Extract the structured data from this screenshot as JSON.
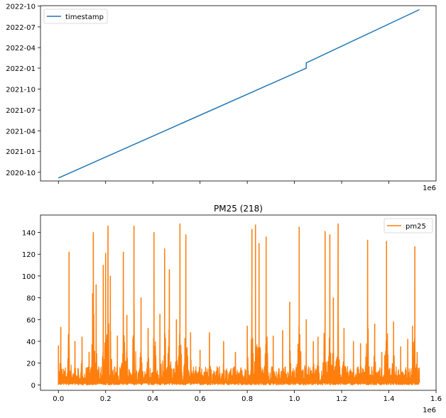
{
  "chart_data": [
    {
      "type": "line",
      "title": "",
      "xlabel": "",
      "ylabel": "",
      "x_offset_label": "1e6",
      "y_ticks": [
        "2020-10",
        "2021-01",
        "2021-04",
        "2021-07",
        "2021-10",
        "2022-01",
        "2022-04",
        "2022-07",
        "2022-10"
      ],
      "x_ticks_unlabeled": [
        0,
        0.2,
        0.4,
        0.6,
        0.8,
        1.0,
        1.2,
        1.4
      ],
      "xlim": [
        -0.076,
        1.6
      ],
      "ylim": [
        "2020-08-24",
        "2022-10-02"
      ],
      "legend": {
        "position": "upper left",
        "entries": [
          "timestamp"
        ]
      },
      "series": [
        {
          "name": "timestamp",
          "color": "#1f77b4",
          "points": [
            {
              "x": 0.0,
              "y": "2020-09-06"
            },
            {
              "x": 1.05,
              "y": "2022-01-01"
            },
            {
              "x": 1.05,
              "y": "2022-01-24"
            },
            {
              "x": 1.53,
              "y": "2022-09-15"
            }
          ]
        }
      ]
    },
    {
      "type": "line",
      "title": "PM25 (218)",
      "xlabel": "",
      "ylabel": "",
      "x_offset_label": "1e6",
      "x_ticks": [
        "0.0",
        "0.2",
        "0.4",
        "0.6",
        "0.8",
        "1.0",
        "1.2",
        "1.4",
        "1.6"
      ],
      "y_ticks": [
        "0",
        "20",
        "40",
        "60",
        "80",
        "100",
        "120",
        "140"
      ],
      "xlim": [
        -0.076,
        1.6
      ],
      "ylim": [
        -5,
        156
      ],
      "legend": {
        "position": "upper right",
        "entries": [
          "pm25"
        ]
      },
      "series": [
        {
          "name": "pm25",
          "color": "#ff7f0e",
          "peaks": [
            {
              "x": 0.0,
              "y": 36
            },
            {
              "x": 0.01,
              "y": 53
            },
            {
              "x": 0.045,
              "y": 122
            },
            {
              "x": 0.07,
              "y": 40
            },
            {
              "x": 0.1,
              "y": 44
            },
            {
              "x": 0.13,
              "y": 30
            },
            {
              "x": 0.145,
              "y": 84
            },
            {
              "x": 0.148,
              "y": 140
            },
            {
              "x": 0.16,
              "y": 92
            },
            {
              "x": 0.19,
              "y": 110
            },
            {
              "x": 0.2,
              "y": 121
            },
            {
              "x": 0.21,
              "y": 146
            },
            {
              "x": 0.22,
              "y": 100
            },
            {
              "x": 0.25,
              "y": 45
            },
            {
              "x": 0.275,
              "y": 122
            },
            {
              "x": 0.29,
              "y": 64
            },
            {
              "x": 0.32,
              "y": 146
            },
            {
              "x": 0.35,
              "y": 80
            },
            {
              "x": 0.38,
              "y": 52
            },
            {
              "x": 0.405,
              "y": 140
            },
            {
              "x": 0.43,
              "y": 65
            },
            {
              "x": 0.45,
              "y": 125
            },
            {
              "x": 0.47,
              "y": 106
            },
            {
              "x": 0.5,
              "y": 60
            },
            {
              "x": 0.515,
              "y": 148
            },
            {
              "x": 0.54,
              "y": 138
            },
            {
              "x": 0.56,
              "y": 48
            },
            {
              "x": 0.6,
              "y": 32
            },
            {
              "x": 0.64,
              "y": 48
            },
            {
              "x": 0.7,
              "y": 40
            },
            {
              "x": 0.75,
              "y": 30
            },
            {
              "x": 0.8,
              "y": 54
            },
            {
              "x": 0.82,
              "y": 143
            },
            {
              "x": 0.835,
              "y": 147
            },
            {
              "x": 0.85,
              "y": 130
            },
            {
              "x": 0.88,
              "y": 136
            },
            {
              "x": 0.91,
              "y": 45
            },
            {
              "x": 0.95,
              "y": 50
            },
            {
              "x": 0.98,
              "y": 76
            },
            {
              "x": 1.02,
              "y": 145
            },
            {
              "x": 1.05,
              "y": 60
            },
            {
              "x": 1.08,
              "y": 40
            },
            {
              "x": 1.1,
              "y": 44
            },
            {
              "x": 1.13,
              "y": 141
            },
            {
              "x": 1.15,
              "y": 138
            },
            {
              "x": 1.165,
              "y": 80
            },
            {
              "x": 1.185,
              "y": 148
            },
            {
              "x": 1.21,
              "y": 52
            },
            {
              "x": 1.25,
              "y": 40
            },
            {
              "x": 1.28,
              "y": 38
            },
            {
              "x": 1.31,
              "y": 133
            },
            {
              "x": 1.34,
              "y": 56
            },
            {
              "x": 1.37,
              "y": 30
            },
            {
              "x": 1.39,
              "y": 132
            },
            {
              "x": 1.42,
              "y": 58
            },
            {
              "x": 1.45,
              "y": 35
            },
            {
              "x": 1.48,
              "y": 42
            },
            {
              "x": 1.5,
              "y": 54
            },
            {
              "x": 1.51,
              "y": 127
            },
            {
              "x": 1.52,
              "y": 30
            }
          ]
        }
      ]
    }
  ]
}
